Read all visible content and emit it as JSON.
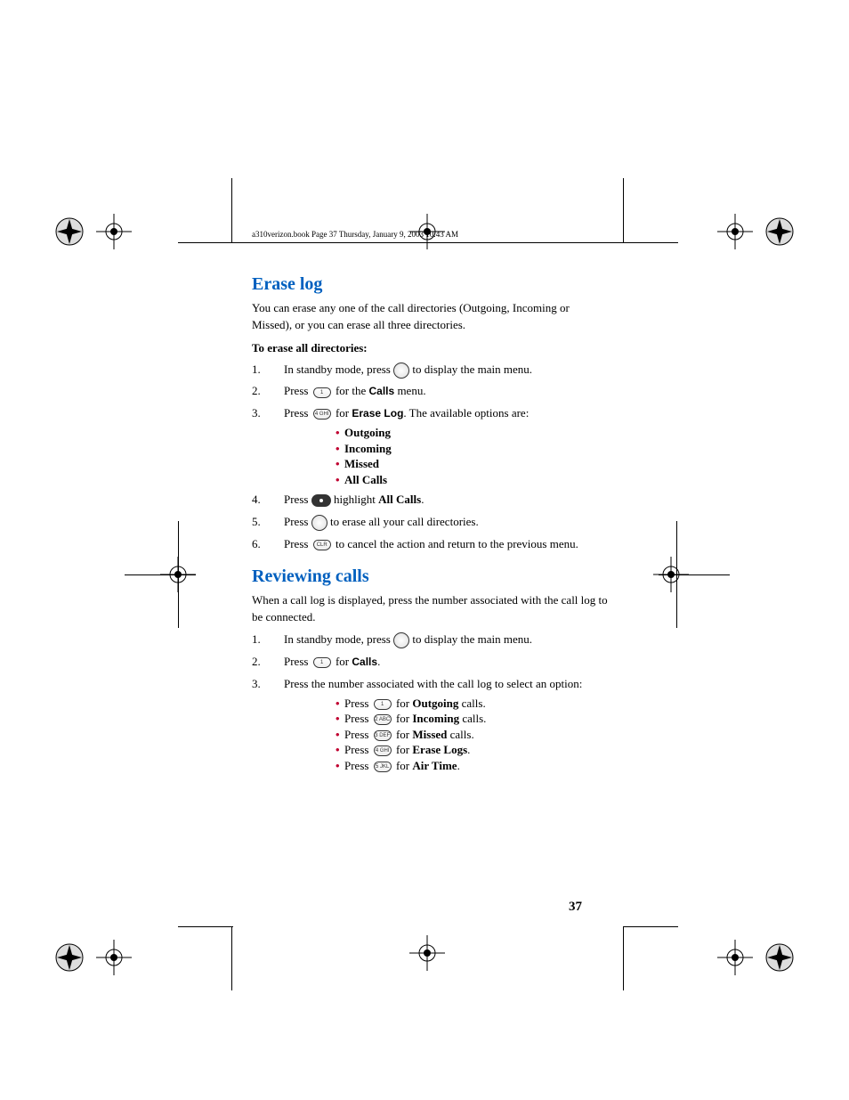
{
  "colors": {
    "section_title": "#0060bf",
    "bullet": "#c00030",
    "text": "#000000",
    "background": "#ffffff"
  },
  "typography": {
    "body_size_pt": 13,
    "title_size_pt": 20,
    "header_size_pt": 9,
    "page_num_size_pt": 15
  },
  "header": "a310verizon.book  Page 37  Thursday, January 9, 2003  10:43 AM",
  "page_number": "37",
  "section1": {
    "title": "Erase log",
    "intro": "You can erase any one of the call directories (Outgoing, Incoming or Missed), or you can erase all three directories.",
    "subhead": "To erase all directories:",
    "steps": {
      "s1a": "In standby mode, press ",
      "s1b": " to display the main menu.",
      "s2a": "Press ",
      "s2b": " for the ",
      "s2c": "Calls",
      "s2d": " menu.",
      "s3a": "Press ",
      "s3b": " for ",
      "s3c": "Erase Log",
      "s3d": ". The available options are:",
      "opts": [
        "Outgoing",
        "Incoming",
        "Missed",
        "All Calls"
      ],
      "s4a": "Press ",
      "s4b": " highlight ",
      "s4c": "All Calls",
      "s4d": ".",
      "s5a": "Press ",
      "s5b": " to erase all your call directories.",
      "s6a": "Press ",
      "s6b": " to cancel the action and return to the previous menu."
    },
    "keys": {
      "k1": "1",
      "k4": "4 GHI",
      "clr": "CLR"
    }
  },
  "section2": {
    "title": "Reviewing calls",
    "intro": "When a call log is displayed, press the number associated with the call log  to be connected.",
    "steps": {
      "s1a": "In standby mode, press ",
      "s1b": " to display the main menu.",
      "s2a": "Press ",
      "s2b": " for ",
      "s2c": "Calls",
      "s2d": ".",
      "s3": "Press the number associated with the call log to select an option:",
      "opts": [
        {
          "pre": "Press ",
          "key": "1",
          "mid": " for ",
          "bold": "Outgoing",
          "post": " calls."
        },
        {
          "pre": "Press ",
          "key": "2 ABC",
          "mid": " for ",
          "bold": "Incoming",
          "post": " calls."
        },
        {
          "pre": "Press ",
          "key": "3 DEF",
          "mid": " for ",
          "bold": "Missed",
          "post": " calls."
        },
        {
          "pre": "Press ",
          "key": "4 GHI",
          "mid": " for ",
          "bold": "Erase Logs",
          "post": "."
        },
        {
          "pre": "Press ",
          "key": "5 JKL",
          "mid": " for ",
          "bold": "Air Time",
          "post": "."
        }
      ]
    }
  }
}
